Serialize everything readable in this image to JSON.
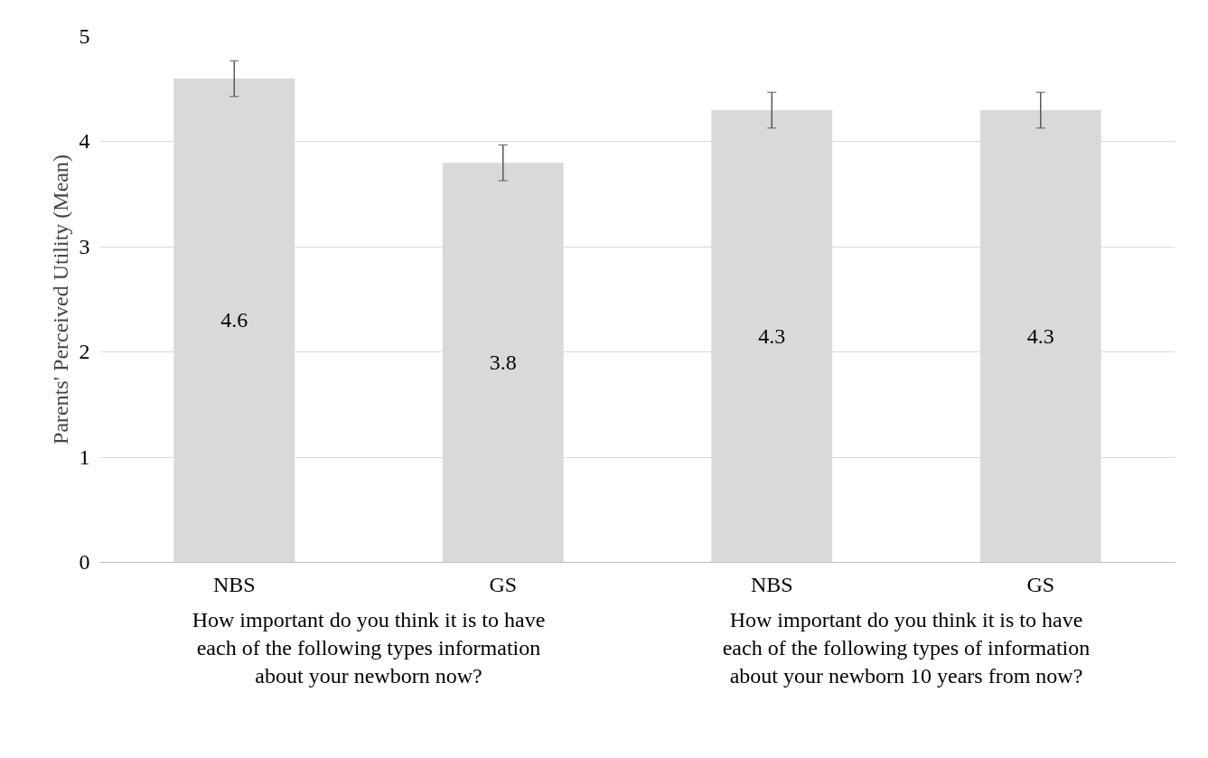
{
  "chart_data": {
    "type": "bar",
    "ylabel": "Parents' Perceived Utility (Mean)",
    "categories": [
      "NBS",
      "GS",
      "NBS",
      "GS"
    ],
    "values": [
      4.6,
      3.8,
      4.3,
      4.3
    ],
    "errors": [
      0.17,
      0.17,
      0.17,
      0.17
    ],
    "color": "#d9d9d9",
    "data_labels": true,
    "ylim": [
      0,
      5
    ],
    "yticks": [
      0,
      1,
      2,
      3,
      4,
      5
    ],
    "grid": "y",
    "annotations": [
      "How important do you think it is to have each of the following types information about your newborn now?",
      "How important do you think it is to have each of the following types of information about your newborn 10 years from now?"
    ]
  }
}
